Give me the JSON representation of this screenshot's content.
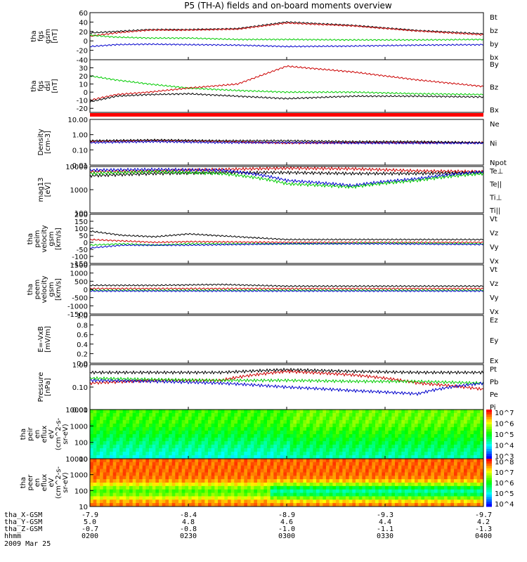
{
  "chart_data": {
    "type": "line",
    "title": "P5 (TH-A) fields and on-board moments overview",
    "date": "2009 Mar 25",
    "x_ticks": [
      "0200",
      "0230",
      "0300",
      "0330",
      "0400"
    ],
    "footer": {
      "rows": [
        {
          "label": "tha_X-GSM",
          "values": [
            "-7.9",
            "-8.4",
            "-8.9",
            "-9.3",
            "-9.7"
          ]
        },
        {
          "label": "tha_Y-GSM",
          "values": [
            "5.0",
            "4.8",
            "4.6",
            "4.4",
            "4.2"
          ]
        },
        {
          "label": "tha_Z-GSM",
          "values": [
            "-0.7",
            "-0.8",
            "-1.0",
            "-1.1",
            "-1.3"
          ]
        },
        {
          "label": "hhmm",
          "values": [
            "0200",
            "0230",
            "0300",
            "0330",
            "0400"
          ]
        }
      ]
    },
    "panels": [
      {
        "id": "fgs_gsm",
        "ylabel": [
          "tha",
          "fgs",
          "gsm",
          "[nT]"
        ],
        "scale": "linear",
        "ylim": [
          -40,
          60
        ],
        "yticks": [
          "60",
          "40",
          "20",
          "0",
          "-20",
          "-40"
        ],
        "legend": [
          {
            "text": "Bt",
            "color": "#000000"
          },
          {
            "text": "bz",
            "color": "#cc0000"
          },
          {
            "text": "by",
            "color": "#00cc00"
          },
          {
            "text": "bx",
            "color": "#0000cc"
          }
        ],
        "series": [
          {
            "name": "Bt",
            "color": "#000000",
            "x": [
              0,
              8,
              18,
              30,
              45,
              60,
              80,
              100,
              120
            ],
            "y": [
              17,
              20,
              24,
              24,
              26,
              40,
              33,
              22,
              15
            ]
          },
          {
            "name": "bz",
            "color": "#cc0000",
            "x": [
              0,
              8,
              18,
              30,
              45,
              60,
              80,
              100,
              120
            ],
            "y": [
              10,
              17,
              23,
              23,
              25,
              38,
              32,
              21,
              13
            ]
          },
          {
            "name": "by",
            "color": "#00cc00",
            "x": [
              0,
              8,
              18,
              30,
              45,
              60,
              80,
              100,
              120
            ],
            "y": [
              12,
              8,
              6,
              6,
              3,
              3,
              2,
              2,
              3
            ]
          },
          {
            "name": "bx",
            "color": "#0000cc",
            "x": [
              0,
              8,
              18,
              30,
              45,
              60,
              80,
              100,
              120
            ],
            "y": [
              -12,
              -8,
              -7,
              -8,
              -9,
              -12,
              -11,
              -9,
              -8
            ]
          }
        ]
      },
      {
        "id": "fgs_dsl",
        "ylabel": [
          "tha",
          "fgs",
          "dsl",
          "[nT]"
        ],
        "scale": "linear",
        "ylim": [
          -25,
          40
        ],
        "yticks": [
          "30",
          "20",
          "10",
          "0",
          "-10",
          "-20"
        ],
        "legend": [
          {
            "text": "By",
            "color": "#00cc00"
          },
          {
            "text": "Bz",
            "color": "#cc0000"
          },
          {
            "text": "Bx",
            "color": "#000000"
          }
        ],
        "series": [
          {
            "name": "By",
            "color": "#00cc00",
            "x": [
              0,
              8,
              18,
              30,
              45,
              60,
              80,
              100,
              120
            ],
            "y": [
              20,
              15,
              10,
              5,
              2,
              0,
              0,
              -2,
              -3
            ]
          },
          {
            "name": "Bz",
            "color": "#cc0000",
            "x": [
              0,
              8,
              18,
              30,
              45,
              60,
              80,
              100,
              120
            ],
            "y": [
              -10,
              -3,
              0,
              5,
              10,
              32,
              25,
              15,
              7
            ]
          },
          {
            "name": "Bx",
            "color": "#000000",
            "x": [
              0,
              8,
              18,
              30,
              45,
              60,
              80,
              100,
              120
            ],
            "y": [
              -12,
              -5,
              -3,
              -2,
              -5,
              -8,
              -5,
              -5,
              -6
            ]
          }
        ]
      },
      {
        "id": "density",
        "ylabel": [
          "Density",
          "[cm-3]"
        ],
        "scale": "log",
        "ylim": [
          0.01,
          10
        ],
        "yticks": [
          "10.00",
          "1.00",
          "0.10",
          "0.01"
        ],
        "legend": [
          {
            "text": "Ne",
            "color": "#cc0000"
          },
          {
            "text": "Ni",
            "color": "#000000"
          },
          {
            "text": "Npot",
            "color": "#0000cc"
          }
        ],
        "series": [
          {
            "name": "Ne",
            "color": "#cc0000",
            "x": [
              0,
              20,
              40,
              60,
              80,
              100,
              120
            ],
            "y": [
              0.35,
              0.4,
              0.35,
              0.28,
              0.3,
              0.3,
              0.3
            ]
          },
          {
            "name": "Ni",
            "color": "#000000",
            "x": [
              0,
              20,
              40,
              60,
              80,
              100,
              120
            ],
            "y": [
              0.4,
              0.45,
              0.4,
              0.4,
              0.35,
              0.35,
              0.3
            ]
          },
          {
            "name": "Npot",
            "color": "#0000cc",
            "x": [
              0,
              20,
              40,
              60,
              80,
              100,
              120
            ],
            "y": [
              0.3,
              0.35,
              0.3,
              0.3,
              0.28,
              0.28,
              0.28
            ]
          }
        ]
      },
      {
        "id": "temperature",
        "ylabel": [
          "mag13",
          "[eV]"
        ],
        "scale": "log",
        "ylim": [
          100,
          10000
        ],
        "yticks": [
          "10000",
          "1000",
          "100"
        ],
        "legend": [
          {
            "text": "Te⊥",
            "color": "#cc0000"
          },
          {
            "text": "Te||",
            "color": "#000000"
          },
          {
            "text": "Ti⊥",
            "color": "#0000cc"
          },
          {
            "text": "Ti||",
            "color": "#00cc00"
          }
        ],
        "series": [
          {
            "name": "Te⊥",
            "color": "#cc0000",
            "x": [
              0,
              20,
              40,
              60,
              80,
              100,
              120
            ],
            "y": [
              6000,
              6500,
              7500,
              8500,
              8000,
              6500,
              6000
            ]
          },
          {
            "name": "Te||",
            "color": "#000000",
            "x": [
              0,
              20,
              40,
              60,
              80,
              100,
              120
            ],
            "y": [
              4000,
              5000,
              5500,
              5500,
              5000,
              5000,
              5500
            ]
          },
          {
            "name": "Ti⊥",
            "color": "#0000cc",
            "x": [
              0,
              20,
              40,
              60,
              80,
              100,
              120
            ],
            "y": [
              7000,
              7500,
              7000,
              2500,
              1500,
              3000,
              6000
            ]
          },
          {
            "name": "Ti||",
            "color": "#00cc00",
            "x": [
              0,
              20,
              40,
              60,
              80,
              100,
              120
            ],
            "y": [
              5000,
              6000,
              5000,
              1800,
              1300,
              2500,
              5000
            ]
          }
        ]
      },
      {
        "id": "peim_velocity",
        "ylabel": [
          "tha",
          "peim",
          "velocity",
          "gsm",
          "[km/s]"
        ],
        "scale": "linear",
        "ylim": [
          -150,
          200
        ],
        "yticks": [
          "200",
          "150",
          "100",
          "50",
          "0",
          "-50",
          "-100",
          "-150"
        ],
        "legend": [
          {
            "text": "Vt",
            "color": "#000000"
          },
          {
            "text": "Vz",
            "color": "#cc0000"
          },
          {
            "text": "Vy",
            "color": "#00cc00"
          },
          {
            "text": "Vx",
            "color": "#0000cc"
          }
        ],
        "series": [
          {
            "name": "Vt",
            "color": "#000000",
            "x": [
              0,
              10,
              20,
              30,
              60,
              90,
              120
            ],
            "y": [
              80,
              50,
              40,
              60,
              20,
              20,
              20
            ]
          },
          {
            "name": "Vz",
            "color": "#cc0000",
            "x": [
              0,
              10,
              20,
              30,
              60,
              90,
              120
            ],
            "y": [
              20,
              10,
              0,
              5,
              0,
              0,
              0
            ]
          },
          {
            "name": "Vy",
            "color": "#00cc00",
            "x": [
              0,
              10,
              20,
              30,
              60,
              90,
              120
            ],
            "y": [
              -20,
              -10,
              -20,
              -10,
              -10,
              -5,
              -10
            ]
          },
          {
            "name": "Vx",
            "color": "#0000cc",
            "x": [
              0,
              10,
              20,
              30,
              60,
              90,
              120
            ],
            "y": [
              -40,
              -20,
              -20,
              -20,
              -10,
              -10,
              -15
            ]
          }
        ]
      },
      {
        "id": "peem_velocity",
        "ylabel": [
          "tha",
          "peem",
          "velocity",
          "gsm",
          "[km/s]"
        ],
        "scale": "linear",
        "ylim": [
          -1500,
          1500
        ],
        "yticks": [
          "1500",
          "1000",
          "500",
          "0",
          "-500",
          "-1000",
          "-1500"
        ],
        "legend": [
          {
            "text": "Vt",
            "color": "#000000"
          },
          {
            "text": "Vz",
            "color": "#cc0000"
          },
          {
            "text": "Vy",
            "color": "#00cc00"
          },
          {
            "text": "Vx",
            "color": "#0000cc"
          }
        ],
        "series": [
          {
            "name": "Vt",
            "color": "#000000",
            "x": [
              0,
              20,
              40,
              60,
              80,
              100,
              120
            ],
            "y": [
              250,
              250,
              300,
              200,
              200,
              200,
              200
            ]
          },
          {
            "name": "Vz",
            "color": "#cc0000",
            "x": [
              0,
              20,
              40,
              60,
              80,
              100,
              120
            ],
            "y": [
              50,
              50,
              50,
              50,
              50,
              50,
              50
            ]
          },
          {
            "name": "Vy",
            "color": "#00cc00",
            "x": [
              0,
              20,
              40,
              60,
              80,
              100,
              120
            ],
            "y": [
              -50,
              -50,
              -50,
              -50,
              -50,
              -50,
              -50
            ]
          },
          {
            "name": "Vx",
            "color": "#0000cc",
            "x": [
              0,
              20,
              40,
              60,
              80,
              100,
              120
            ],
            "y": [
              -100,
              -100,
              -100,
              -100,
              -100,
              -100,
              -100
            ]
          }
        ]
      },
      {
        "id": "efield",
        "ylabel": [
          "E=-VxB",
          "[mV/m]"
        ],
        "scale": "linear",
        "ylim": [
          0,
          1
        ],
        "yticks": [
          "1.0",
          "0.8",
          "0.6",
          "0.4",
          "0.2",
          "0.0"
        ],
        "legend": [
          {
            "text": "Ez",
            "color": "#cc0000"
          },
          {
            "text": "Ey",
            "color": "#00cc00"
          },
          {
            "text": "Ex",
            "color": "#0000cc"
          }
        ],
        "series": []
      },
      {
        "id": "pressure",
        "ylabel": [
          "Pressure",
          "[nPa]"
        ],
        "scale": "log",
        "ylim": [
          0.01,
          1
        ],
        "yticks": [
          "1.00",
          "0.10",
          "0.01"
        ],
        "legend": [
          {
            "text": "Pt",
            "color": "#000000"
          },
          {
            "text": "Pb",
            "color": "#cc0000"
          },
          {
            "text": "Pe",
            "color": "#00cc00"
          },
          {
            "text": "Pi",
            "color": "#0000cc"
          }
        ],
        "series": [
          {
            "name": "Pt",
            "color": "#000000",
            "x": [
              0,
              20,
              40,
              60,
              80,
              100,
              120
            ],
            "y": [
              0.45,
              0.45,
              0.45,
              0.6,
              0.5,
              0.45,
              0.45
            ]
          },
          {
            "name": "Pb",
            "color": "#cc0000",
            "x": [
              0,
              20,
              40,
              60,
              80,
              100,
              120
            ],
            "y": [
              0.15,
              0.2,
              0.2,
              0.5,
              0.35,
              0.15,
              0.08
            ]
          },
          {
            "name": "Pe",
            "color": "#00cc00",
            "x": [
              0,
              20,
              40,
              60,
              80,
              100,
              120
            ],
            "y": [
              0.25,
              0.22,
              0.2,
              0.2,
              0.18,
              0.18,
              0.15
            ]
          },
          {
            "name": "Pi",
            "color": "#0000cc",
            "x": [
              0,
              20,
              40,
              60,
              80,
              100,
              120
            ],
            "y": [
              0.2,
              0.18,
              0.15,
              0.1,
              0.07,
              0.05,
              0.15
            ]
          }
        ]
      },
      {
        "id": "peir_spec",
        "type": "heatmap",
        "ylabel": [
          "tha",
          "peir",
          "en",
          "eflux",
          "eV",
          "(cm^2-s-",
          "sr-eV)"
        ],
        "scale": "log",
        "ylim": [
          10,
          10000
        ],
        "yticks": [
          "10000",
          "1000",
          "100",
          "10"
        ],
        "colorbar": [
          "10^7",
          "10^6",
          "10^5",
          "10^4",
          "10^3"
        ]
      },
      {
        "id": "peer_spec",
        "type": "heatmap",
        "ylabel": [
          "tha",
          "peer",
          "en",
          "eflux",
          "eV",
          "(cm^2-s-",
          "sr-eV)"
        ],
        "scale": "log",
        "ylim": [
          10,
          10000
        ],
        "yticks": [
          "10000",
          "1000",
          "100",
          "10"
        ],
        "colorbar": [
          "10^8",
          "10^7",
          "10^6",
          "10^5",
          "10^4"
        ]
      }
    ]
  }
}
